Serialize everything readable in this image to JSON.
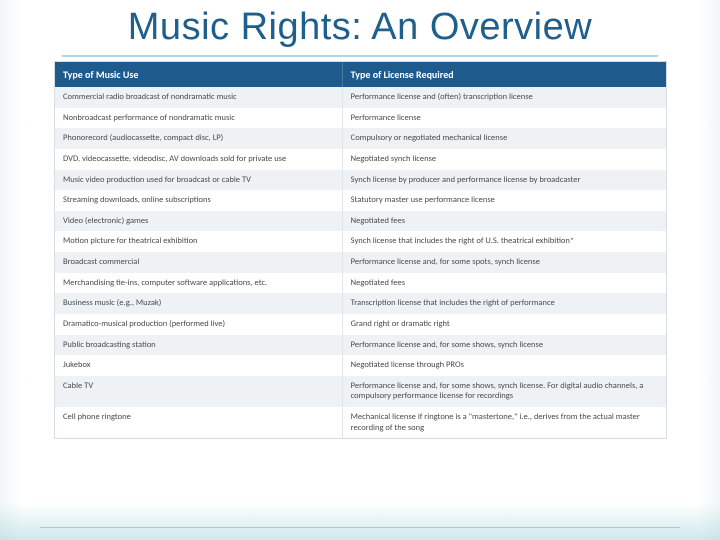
{
  "title": "Music Rights: An Overview",
  "table": {
    "type": "table",
    "header_bg": "#1f5a8d",
    "header_fg": "#ffffff",
    "row_alt_bg": "#eef2f5",
    "row_bg": "#ffffff",
    "border_color": "#d7dde2",
    "font_size_header": 10,
    "font_size_body": 8.5,
    "columns": [
      {
        "label": "Type of Music Use",
        "width_pct": 47,
        "align": "left"
      },
      {
        "label": "Type of License Required",
        "width_pct": 53,
        "align": "left"
      }
    ],
    "rows": [
      [
        "Commercial radio broadcast of nondramatic music",
        "Performance license and (often) transcription license"
      ],
      [
        "Nonbroadcast performance of nondramatic music",
        "Performance license"
      ],
      [
        "Phonorecord (audiocassette, compact disc, LP)",
        "Compulsory or negotiated mechanical license"
      ],
      [
        "DVD, videocassette, videodisc, AV downloads sold for private use",
        "Negotiated synch license"
      ],
      [
        "Music video production used for broadcast or cable TV",
        "Synch license by producer and performance license by broadcaster"
      ],
      [
        "Streaming downloads, online subscriptions",
        "Statutory master use performance license"
      ],
      [
        "Video (electronic) games",
        "Negotiated fees"
      ],
      [
        "Motion picture for theatrical exhibition",
        "Synch license that includes the right of U.S. theatrical exhibition*"
      ],
      [
        "Broadcast commercial",
        "Performance license and, for some spots, synch license"
      ],
      [
        "Merchandising tie-ins, computer software applications, etc.",
        "Negotiated fees"
      ],
      [
        "Business music (e.g., Muzak)",
        "Transcription license that includes the right of performance"
      ],
      [
        "Dramatico-musical production (performed live)",
        "Grand right or dramatic right"
      ],
      [
        "Public broadcasting station",
        "Performance license and, for some shows, synch license"
      ],
      [
        "Jukebox",
        "Negotiated license through PROs"
      ],
      [
        "Cable TV",
        "Performance license and, for some shows, synch license. For digital audio channels, a compulsory performance license for recordings"
      ],
      [
        "Cell phone ringtone",
        "Mechanical license if ringtone is a \"mastertone,\" i.e., derives from the actual master recording of the song"
      ]
    ]
  },
  "styling": {
    "title_color": "#1f5f8b",
    "title_font_size": 38,
    "accent_line_color": "rgba(140,195,210,0.7)",
    "slide_bg": "#ffffff"
  }
}
